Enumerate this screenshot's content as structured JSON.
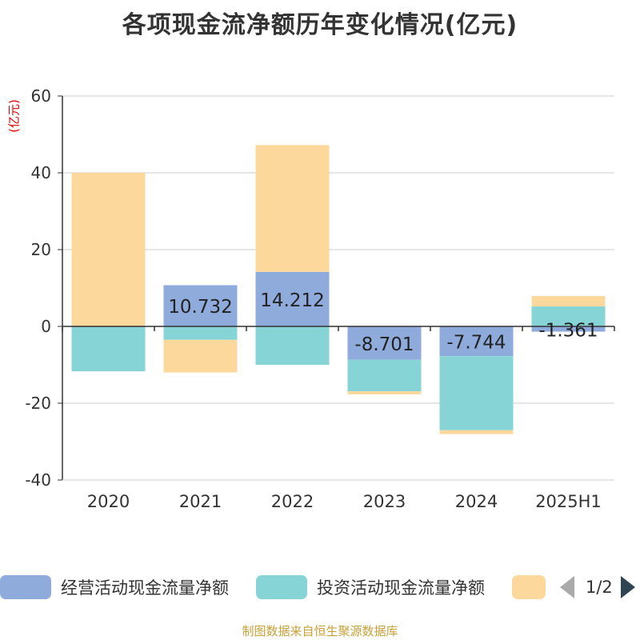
{
  "title": "各项现金流净额历年变化情况(亿元)",
  "unit_label": "(亿元)",
  "source": "制图数据来自恒生聚源数据库",
  "pager_text": "1/2",
  "colors": {
    "operating": "#8eabdb",
    "investing": "#86d4d6",
    "financing": "#fdd89c",
    "axis": "#333333",
    "grid": "#cccccc"
  },
  "legend": [
    {
      "name": "经营活动现金流量净额",
      "color": "#8eabdb"
    },
    {
      "name": "投资活动现金流量净额",
      "color": "#86d4d6"
    },
    {
      "name": "",
      "color": "#fdd89c"
    }
  ],
  "chart_data": {
    "type": "bar",
    "stacked": true,
    "categories": [
      "2020",
      "2021",
      "2022",
      "2023",
      "2024",
      "2025H1"
    ],
    "ylim": [
      -40,
      60
    ],
    "yticks": [
      -40,
      -20,
      0,
      20,
      40,
      60
    ],
    "series": [
      {
        "name": "经营活动现金流量净额",
        "color": "#8eabdb",
        "values": [
          -0.2,
          10.732,
          14.212,
          -8.701,
          -7.744,
          -1.361
        ],
        "labels": [
          "",
          "10.732",
          "14.212",
          "-8.701",
          "-7.744",
          "-1.361"
        ]
      },
      {
        "name": "投资活动现金流量净额",
        "color": "#86d4d6",
        "values": [
          -11.5,
          -3.5,
          -10.0,
          -8.2,
          -19.3,
          5.2
        ]
      },
      {
        "name": "",
        "color": "#fdd89c",
        "values": [
          40.0,
          -8.5,
          33.0,
          -0.8,
          -1.0,
          2.7
        ]
      }
    ]
  }
}
